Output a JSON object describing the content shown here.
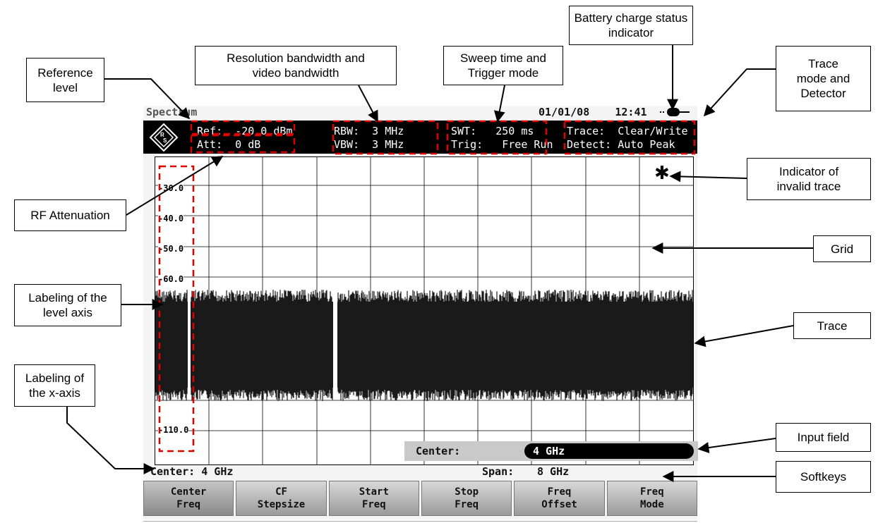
{
  "callouts": {
    "reference_level": "Reference\nlevel",
    "rbw_vbw": "Resolution bandwidth and\nvideo bandwidth",
    "sweep_trigger": "Sweep time and\nTrigger mode",
    "battery": "Battery charge status\nindicator",
    "trace_mode": "Trace\nmode and\nDetector",
    "rf_attenuation": "RF Attenuation",
    "invalid_trace": "Indicator of\ninvalid trace",
    "grid": "Grid",
    "level_axis": "Labeling of the\nlevel axis",
    "trace": "Trace",
    "x_axis": "Labeling of\nthe x-axis",
    "input_field": "Input field",
    "softkeys": "Softkeys"
  },
  "screen": {
    "title": "Spectrum",
    "date": "01/01/08",
    "time": "12:41",
    "header": {
      "ref": "Ref:  -20.0 dBm",
      "att": "Att:  0 dB",
      "rbw": "RBW:  3 MHz",
      "vbw": "VBW:  3 MHz",
      "swt": "SWT:   250 ms",
      "trig": "Trig:   Free Run",
      "trace": "Trace:  Clear/Write",
      "detect": "Detect: Auto Peak"
    },
    "y_ticks": [
      "-30.0",
      "-40.0",
      "-50.0",
      "-60.0",
      "-110.0"
    ],
    "invalid_indicator": "✱",
    "input_field": {
      "label": "Center:",
      "value": "4 GHz"
    },
    "x_info": {
      "center": "Center: 4 GHz",
      "span_label": "Span:",
      "span_value": "8 GHz"
    },
    "softkeys": [
      {
        "line1": "Center",
        "line2": "Freq"
      },
      {
        "line1": "CF",
        "line2": "Stepsize"
      },
      {
        "line1": "Start",
        "line2": "Freq"
      },
      {
        "line1": "Stop",
        "line2": "Freq"
      },
      {
        "line1": "Freq",
        "line2": "Offset"
      },
      {
        "line1": "Freq",
        "line2": "Mode"
      }
    ]
  },
  "colors": {
    "highlight_dash": "#e00000",
    "header_bg": "#000000",
    "trace": "#1a1a1a",
    "screen_bg": "#f4f4f4"
  },
  "icons": {
    "logo": "rohde-schwarz-logo",
    "battery": "battery-icon",
    "invalid": "asterisk-icon"
  }
}
